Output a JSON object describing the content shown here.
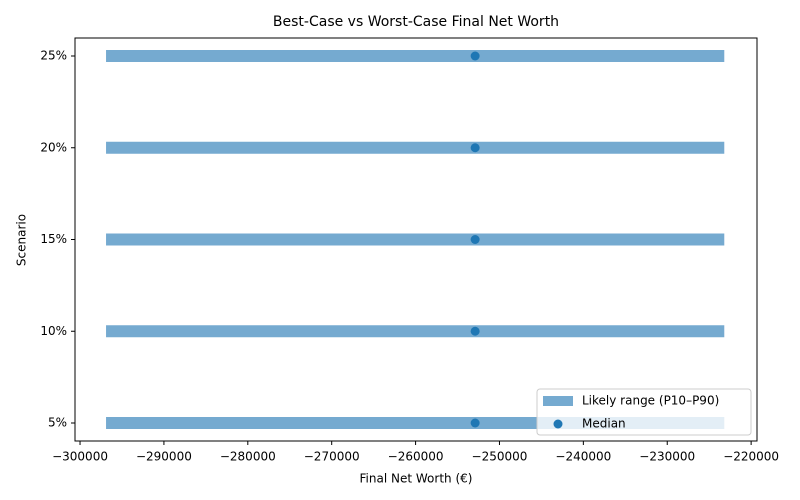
{
  "chart_data": {
    "type": "range",
    "title": "Best-Case vs Worst-Case Final Net Worth",
    "x_label": "Final Net Worth (€)",
    "y_label": "Scenario",
    "categories": [
      "5%",
      "10%",
      "15%",
      "20%",
      "25%"
    ],
    "series": [
      {
        "name": "Likely range (P10–P90)",
        "color": "#75aad0",
        "low": [
          -296900,
          -296900,
          -296900,
          -296900,
          -296900
        ],
        "high": [
          -223200,
          -223200,
          -223200,
          -223200,
          -223200
        ]
      },
      {
        "name": "Median",
        "color": "#1f77b4",
        "values": [
          -252900,
          -252900,
          -252900,
          -252900,
          -252900
        ]
      }
    ],
    "xlim": [
      -300600,
      -219300
    ],
    "xticks": [
      {
        "value": -300000,
        "label": "−300000"
      },
      {
        "value": -290000,
        "label": "−290000"
      },
      {
        "value": -280000,
        "label": "−280000"
      },
      {
        "value": -270000,
        "label": "−270000"
      },
      {
        "value": -260000,
        "label": "−260000"
      },
      {
        "value": -250000,
        "label": "−250000"
      },
      {
        "value": -240000,
        "label": "−240000"
      },
      {
        "value": -230000,
        "label": "−230000"
      },
      {
        "value": -220000,
        "label": "−220000"
      }
    ],
    "legend": "lower right"
  }
}
